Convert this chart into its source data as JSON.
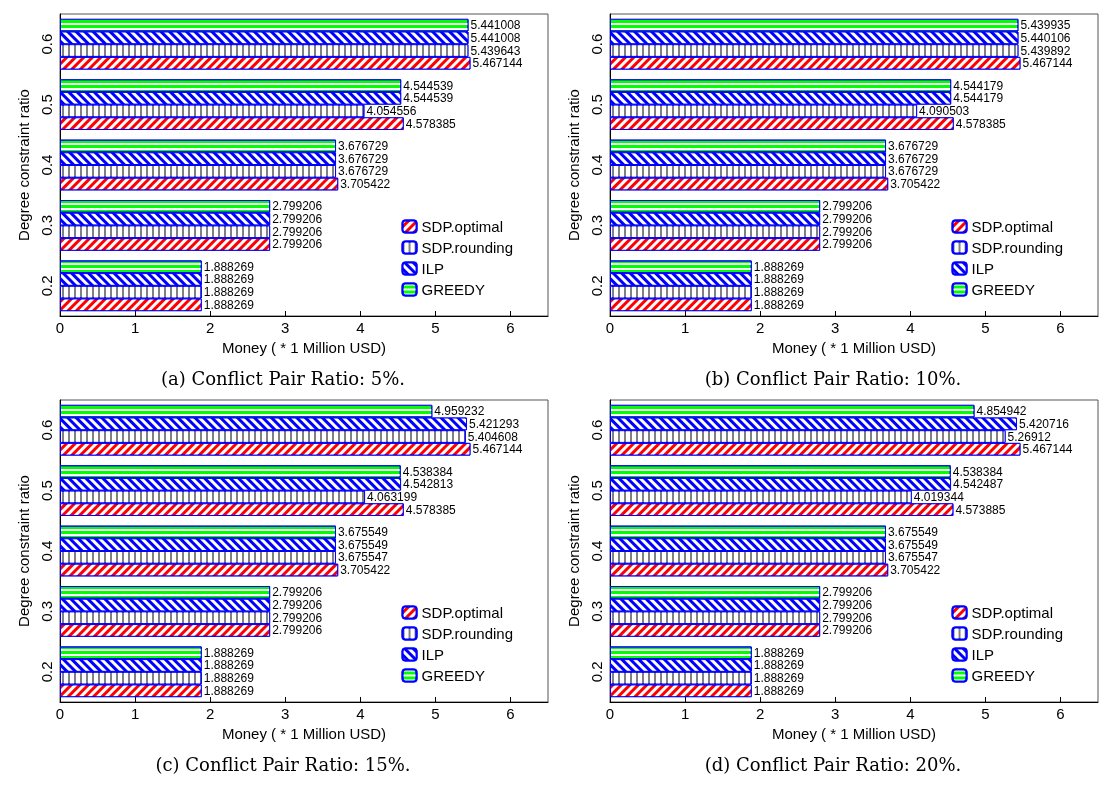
{
  "chart_data": [
    {
      "type": "bar",
      "orientation": "horizontal",
      "title": "(a) Conflict Pair Ratio: 5%.",
      "xlabel": "Money ( * 1 Million USD)",
      "ylabel": "Degree constraint ratio",
      "categories": [
        "0.6",
        "0.5",
        "0.4",
        "0.3",
        "0.2"
      ],
      "xlim": [
        0,
        6.5
      ],
      "xticks": [
        0,
        1,
        2,
        3,
        4,
        5,
        6
      ],
      "legend": "bottom right",
      "data_labels": true,
      "grid": false,
      "series": [
        {
          "name": "GREEDY",
          "color": "#00ff00",
          "values": [
            5.441008,
            4.544539,
            3.676729,
            2.799206,
            1.888269
          ]
        },
        {
          "name": "ILP",
          "color": "#0000ff",
          "values": [
            5.441008,
            4.544539,
            3.676729,
            2.799206,
            1.888269
          ]
        },
        {
          "name": "SDP.rounding",
          "color": "#808080",
          "values": [
            5.439643,
            4.054556,
            3.676729,
            2.799206,
            1.888269
          ]
        },
        {
          "name": "SDP.optimal",
          "color": "#ff0000",
          "values": [
            5.467144,
            4.578385,
            3.705422,
            2.799206,
            1.888269
          ]
        }
      ]
    },
    {
      "type": "bar",
      "orientation": "horizontal",
      "title": "(b) Conflict Pair Ratio: 10%.",
      "xlabel": "Money ( * 1 Million USD)",
      "ylabel": "Degree constraint ratio",
      "categories": [
        "0.6",
        "0.5",
        "0.4",
        "0.3",
        "0.2"
      ],
      "xlim": [
        0,
        6.5
      ],
      "xticks": [
        0,
        1,
        2,
        3,
        4,
        5,
        6
      ],
      "legend": "bottom right",
      "data_labels": true,
      "grid": false,
      "series": [
        {
          "name": "GREEDY",
          "color": "#00ff00",
          "values": [
            5.439935,
            4.544179,
            3.676729,
            2.799206,
            1.888269
          ]
        },
        {
          "name": "ILP",
          "color": "#0000ff",
          "values": [
            5.440106,
            4.544179,
            3.676729,
            2.799206,
            1.888269
          ]
        },
        {
          "name": "SDP.rounding",
          "color": "#808080",
          "values": [
            5.439892,
            4.090503,
            3.676729,
            2.799206,
            1.888269
          ]
        },
        {
          "name": "SDP.optimal",
          "color": "#ff0000",
          "values": [
            5.467144,
            4.578385,
            3.705422,
            2.799206,
            1.888269
          ]
        }
      ]
    },
    {
      "type": "bar",
      "orientation": "horizontal",
      "title": "(c) Conflict Pair Ratio: 15%.",
      "xlabel": "Money ( * 1 Million USD)",
      "ylabel": "Degree constraint ratio",
      "categories": [
        "0.6",
        "0.5",
        "0.4",
        "0.3",
        "0.2"
      ],
      "xlim": [
        0,
        6.5
      ],
      "xticks": [
        0,
        1,
        2,
        3,
        4,
        5,
        6
      ],
      "legend": "bottom right",
      "data_labels": true,
      "grid": false,
      "series": [
        {
          "name": "GREEDY",
          "color": "#00ff00",
          "values": [
            4.959232,
            4.538384,
            3.675549,
            2.799206,
            1.888269
          ]
        },
        {
          "name": "ILP",
          "color": "#0000ff",
          "values": [
            5.421293,
            4.542813,
            3.675549,
            2.799206,
            1.888269
          ]
        },
        {
          "name": "SDP.rounding",
          "color": "#808080",
          "values": [
            5.404608,
            4.063199,
            3.675547,
            2.799206,
            1.888269
          ]
        },
        {
          "name": "SDP.optimal",
          "color": "#ff0000",
          "values": [
            5.467144,
            4.578385,
            3.705422,
            2.799206,
            1.888269
          ]
        }
      ]
    },
    {
      "type": "bar",
      "orientation": "horizontal",
      "title": "(d) Conflict Pair Ratio: 20%.",
      "xlabel": "Money ( * 1 Million USD)",
      "ylabel": "Degree constraint ratio",
      "categories": [
        "0.6",
        "0.5",
        "0.4",
        "0.3",
        "0.2"
      ],
      "xlim": [
        0,
        6.5
      ],
      "xticks": [
        0,
        1,
        2,
        3,
        4,
        5,
        6
      ],
      "legend": "bottom right",
      "data_labels": true,
      "grid": false,
      "series": [
        {
          "name": "GREEDY",
          "color": "#00ff00",
          "values": [
            4.854942,
            4.538384,
            3.675549,
            2.799206,
            1.888269
          ]
        },
        {
          "name": "ILP",
          "color": "#0000ff",
          "values": [
            5.420716,
            4.542487,
            3.675549,
            2.799206,
            1.888269
          ]
        },
        {
          "name": "SDP.rounding",
          "color": "#808080",
          "values": [
            5.26912,
            4.019344,
            3.675547,
            2.799206,
            1.888269
          ]
        },
        {
          "name": "SDP.optimal",
          "color": "#ff0000",
          "values": [
            5.467144,
            4.573885,
            3.705422,
            2.799206,
            1.888269
          ]
        }
      ]
    }
  ]
}
